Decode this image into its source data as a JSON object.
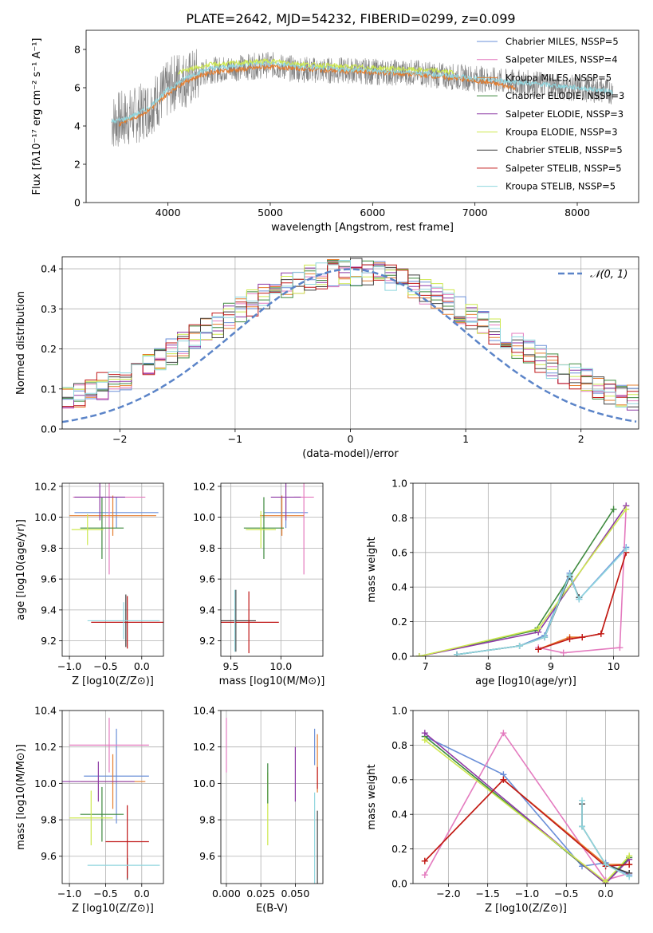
{
  "figure": {
    "title": "PLATE=2642, MJD=54232, FIBERID=0299, z=0.099"
  },
  "colors": {
    "Chabrier MILES": "#6a8fd8",
    "Salpeter MILES": "#e47bbf",
    "Kroupa MILES": "#e57c2b",
    "Chabrier ELODIE": "#3f8a3f",
    "Salpeter ELODIE": "#8e3aa5",
    "Kroupa ELODIE": "#cde84f",
    "Chabrier STELIB": "#404040",
    "Salpeter STELIB": "#c01818",
    "Kroupa STELIB": "#8fd6de",
    "data": "#808080",
    "normal": "#5b84c8"
  },
  "chart_data": [
    {
      "id": "spectrum",
      "type": "line",
      "xlabel": "wavelength [Angstrom, rest frame]",
      "ylabel": "Flux [fλ10⁻¹⁷ erg cm⁻² s⁻¹ A⁻¹]",
      "xlim": [
        3200,
        8600
      ],
      "ylim": [
        0,
        9
      ],
      "xticks": [
        4000,
        5000,
        6000,
        7000,
        8000
      ],
      "yticks": [
        0,
        2,
        4,
        6,
        8
      ],
      "legend_placement": "right",
      "legend": [
        "Chabrier MILES, NSSP=5",
        "Salpeter MILES, NSSP=4",
        "Kroupa MILES, NSSP=5",
        "Chabrier ELODIE, NSSP=3",
        "Salpeter ELODIE, NSSP=3",
        "Kroupa ELODIE, NSSP=3",
        "Chabrier STELIB, NSSP=5",
        "Salpeter STELIB, NSSP=5",
        "Kroupa STELIB, NSSP=5"
      ],
      "series": [
        {
          "name": "data",
          "x": [
            3450,
            3500,
            3600,
            3700,
            3800,
            3900,
            4000,
            4100,
            4200,
            4400,
            4600,
            4800,
            5000,
            5200,
            5500,
            5800,
            6100,
            6400,
            6700,
            7000,
            7300,
            7600,
            7900,
            8200,
            8350
          ],
          "y": [
            4.2,
            4.3,
            4.4,
            4.6,
            4.9,
            5.4,
            5.9,
            6.5,
            6.4,
            6.9,
            7.0,
            7.1,
            7.2,
            7.0,
            6.9,
            6.9,
            6.8,
            6.8,
            6.6,
            6.5,
            6.3,
            6.2,
            6.0,
            5.9,
            5.8
          ]
        },
        {
          "name": "Kroupa MILES, NSSP=5",
          "x": [
            3520,
            3600,
            3700,
            3800,
            3900,
            4000,
            4100,
            4200,
            4400,
            4600,
            4800,
            5000,
            5300,
            5600,
            6000,
            6400,
            6800,
            7100,
            7400
          ],
          "y": [
            4.1,
            4.3,
            4.5,
            4.8,
            5.2,
            5.7,
            6.1,
            6.4,
            6.8,
            6.9,
            7.0,
            7.1,
            7.0,
            6.9,
            6.8,
            6.7,
            6.5,
            6.3,
            6.0
          ]
        },
        {
          "name": "Kroupa STELIB, NSSP=5",
          "x": [
            3450,
            3600,
            3800,
            4000,
            4200,
            4400,
            4600,
            4800,
            5000,
            5300,
            5600,
            6000,
            6400,
            6800,
            7200,
            7600,
            8000,
            8350
          ],
          "y": [
            4.2,
            4.4,
            4.9,
            5.9,
            6.6,
            7.0,
            7.1,
            7.3,
            7.3,
            7.1,
            7.0,
            6.9,
            6.8,
            6.6,
            6.4,
            6.2,
            6.0,
            5.8
          ]
        },
        {
          "name": "Kroupa ELODIE, NSSP=3",
          "x": [
            4100,
            4400,
            4700,
            5000,
            5400,
            5800,
            6200,
            6600,
            6800
          ],
          "y": [
            6.8,
            7.2,
            7.3,
            7.4,
            7.2,
            7.1,
            7.0,
            6.9,
            6.8
          ]
        }
      ]
    },
    {
      "id": "residuals",
      "type": "line",
      "xlabel": "(data-model)/error",
      "ylabel": "Normed distribution",
      "xlim": [
        -2.5,
        2.5
      ],
      "ylim": [
        0,
        0.43
      ],
      "xticks": [
        -2,
        -1,
        0,
        1,
        2
      ],
      "yticks": [
        0.0,
        0.1,
        0.2,
        0.3,
        0.4
      ],
      "legend": [
        "𝒩(0, 1)"
      ],
      "legend_placement": "top-right",
      "series": [
        {
          "name": "𝒩(0, 1)",
          "mean": 0,
          "sigma": 1
        }
      ]
    },
    {
      "id": "age-vs-z",
      "type": "scatter",
      "xlabel": "Z [log10(Z/Z⊙)]",
      "ylabel": "age  [log10(age/yr)]",
      "xlim": [
        -1.1,
        0.3
      ],
      "ylim": [
        9.1,
        10.22
      ],
      "xticks": [
        -1.0,
        -0.5,
        0.0
      ],
      "yticks": [
        9.2,
        9.4,
        9.6,
        9.8,
        10.0,
        10.2
      ],
      "points": [
        {
          "model": "Chabrier MILES",
          "x": -0.35,
          "y": 10.03,
          "xerr": 0.58,
          "yerr": 0.1
        },
        {
          "model": "Salpeter MILES",
          "x": -0.45,
          "y": 10.13,
          "xerr": 0.5,
          "yerr": 0.5
        },
        {
          "model": "Kroupa MILES",
          "x": -0.4,
          "y": 10.01,
          "xerr": 0.6,
          "yerr": 0.13
        },
        {
          "model": "Chabrier ELODIE",
          "x": -0.55,
          "y": 9.93,
          "xerr": 0.3,
          "yerr": 0.2
        },
        {
          "model": "Salpeter ELODIE",
          "x": -0.58,
          "y": 10.13,
          "xerr": 0.35,
          "yerr": 0.15
        },
        {
          "model": "Kroupa ELODIE",
          "x": -0.75,
          "y": 9.92,
          "xerr": 0.22,
          "yerr": 0.1
        },
        {
          "model": "Chabrier STELIB",
          "x": -0.22,
          "y": 9.33,
          "xerr": 0.0,
          "yerr": 0.17
        },
        {
          "model": "Salpeter STELIB",
          "x": -0.2,
          "y": 9.32,
          "xerr": 0.5,
          "yerr": 0.17
        },
        {
          "model": "Kroupa STELIB",
          "x": -0.25,
          "y": 9.33,
          "xerr": 0.5,
          "yerr": 0.12
        }
      ]
    },
    {
      "id": "age-vs-mass",
      "type": "scatter",
      "xlabel": "mass [log10(M/M⊙)]",
      "ylabel": "",
      "xlim": [
        9.4,
        10.42
      ],
      "ylim": [
        9.1,
        10.22
      ],
      "xticks": [
        9.5,
        10.0
      ],
      "yticks": [
        9.2,
        9.4,
        9.6,
        9.8,
        10.0,
        10.2
      ],
      "points": [
        {
          "model": "Chabrier MILES",
          "x": 10.05,
          "y": 10.03,
          "xerr": 0.22,
          "yerr": 0.1
        },
        {
          "model": "Salpeter MILES",
          "x": 10.23,
          "y": 10.13,
          "xerr": 0.1,
          "yerr": 0.5
        },
        {
          "model": "Kroupa MILES",
          "x": 10.01,
          "y": 10.01,
          "xerr": 0.22,
          "yerr": 0.13
        },
        {
          "model": "Chabrier ELODIE",
          "x": 9.83,
          "y": 9.93,
          "xerr": 0.2,
          "yerr": 0.2
        },
        {
          "model": "Salpeter ELODIE",
          "x": 10.05,
          "y": 10.13,
          "xerr": 0.15,
          "yerr": 0.15
        },
        {
          "model": "Kroupa ELODIE",
          "x": 9.8,
          "y": 9.92,
          "xerr": 0.15,
          "yerr": 0.12
        },
        {
          "model": "Chabrier STELIB",
          "x": 9.55,
          "y": 9.33,
          "xerr": 0.2,
          "yerr": 0.2
        },
        {
          "model": "Salpeter STELIB",
          "x": 9.68,
          "y": 9.32,
          "xerr": 0.3,
          "yerr": 0.2
        },
        {
          "model": "Kroupa STELIB",
          "x": 9.54,
          "y": 9.33,
          "xerr": 0.0,
          "yerr": 0.2
        }
      ]
    },
    {
      "id": "mass-weight-vs-age",
      "type": "line",
      "xlabel": "age  [log10(age/yr)]",
      "ylabel": "mass weight",
      "xlim": [
        6.8,
        10.4
      ],
      "ylim": [
        0,
        1
      ],
      "xticks": [
        7,
        8,
        9,
        10
      ],
      "yticks": [
        0.0,
        0.2,
        0.4,
        0.6,
        0.8,
        1.0
      ],
      "series": [
        {
          "name": "Chabrier MILES",
          "x": [
            7.5,
            8.5,
            8.9,
            9.3,
            9.45,
            10.2
          ],
          "y": [
            0.01,
            0.06,
            0.12,
            0.48,
            0.33,
            0.63
          ]
        },
        {
          "name": "Salpeter MILES",
          "x": [
            8.8,
            9.2,
            10.1,
            10.2
          ],
          "y": [
            0.05,
            0.02,
            0.05,
            0.87
          ]
        },
        {
          "name": "Kroupa MILES",
          "x": [
            8.8,
            9.3,
            9.5,
            9.8,
            10.2
          ],
          "y": [
            0.04,
            0.11,
            0.11,
            0.13,
            0.6
          ]
        },
        {
          "name": "Chabrier ELODIE",
          "x": [
            6.9,
            8.75,
            10.0
          ],
          "y": [
            0.0,
            0.15,
            0.85
          ]
        },
        {
          "name": "Salpeter ELODIE",
          "x": [
            6.9,
            8.8,
            10.2
          ],
          "y": [
            0.0,
            0.14,
            0.87
          ]
        },
        {
          "name": "Kroupa ELODIE",
          "x": [
            6.9,
            8.8,
            10.2
          ],
          "y": [
            0.0,
            0.16,
            0.85
          ]
        },
        {
          "name": "Chabrier STELIB",
          "x": [
            7.5,
            8.5,
            8.9,
            9.3,
            9.45
          ],
          "y": [
            0.01,
            0.06,
            0.11,
            0.46,
            0.34
          ]
        },
        {
          "name": "Salpeter STELIB",
          "x": [
            8.8,
            9.3,
            9.5,
            9.8,
            10.2
          ],
          "y": [
            0.04,
            0.1,
            0.11,
            0.13,
            0.6
          ]
        },
        {
          "name": "Kroupa STELIB",
          "x": [
            7.5,
            8.5,
            8.9,
            9.3,
            9.45,
            10.2
          ],
          "y": [
            0.01,
            0.06,
            0.11,
            0.47,
            0.33,
            0.62
          ]
        }
      ]
    },
    {
      "id": "mass-vs-z",
      "type": "scatter",
      "xlabel": "Z [log10(Z/Z⊙)]",
      "ylabel": "mass [log10(M/M⊙)]",
      "xlim": [
        -1.1,
        0.3
      ],
      "ylim": [
        9.45,
        10.4
      ],
      "xticks": [
        -1.0,
        -0.5,
        0.0
      ],
      "yticks": [
        9.6,
        9.8,
        10.0,
        10.2,
        10.4
      ],
      "points": [
        {
          "model": "Chabrier MILES",
          "x": -0.35,
          "y": 10.04,
          "xerr": 0.45,
          "yerr": 0.26
        },
        {
          "model": "Salpeter MILES",
          "x": -0.45,
          "y": 10.21,
          "xerr": 0.55,
          "yerr": 0.15
        },
        {
          "model": "Kroupa MILES",
          "x": -0.4,
          "y": 10.01,
          "xerr": 0.45,
          "yerr": 0.15
        },
        {
          "model": "Chabrier ELODIE",
          "x": -0.55,
          "y": 9.83,
          "xerr": 0.3,
          "yerr": 0.15
        },
        {
          "model": "Salpeter ELODIE",
          "x": -0.6,
          "y": 10.01,
          "xerr": 0.5,
          "yerr": 0.11
        },
        {
          "model": "Kroupa ELODIE",
          "x": -0.7,
          "y": 9.81,
          "xerr": 0.3,
          "yerr": 0.15
        },
        {
          "model": "Chabrier STELIB",
          "x": -0.2,
          "y": 9.53,
          "xerr": 0.0,
          "yerr": 0.06
        },
        {
          "model": "Salpeter STELIB",
          "x": -0.2,
          "y": 9.68,
          "xerr": 0.3,
          "yerr": 0.2
        },
        {
          "model": "Kroupa STELIB",
          "x": -0.25,
          "y": 9.55,
          "xerr": 0.5,
          "yerr": 0.0
        }
      ]
    },
    {
      "id": "mass-vs-ebv",
      "type": "scatter",
      "xlabel": "E(B-V)",
      "ylabel": "",
      "xlim": [
        -0.004,
        0.07
      ],
      "ylim": [
        9.45,
        10.4
      ],
      "xticks": [
        0.0,
        0.025,
        0.05
      ],
      "yticks": [
        9.6,
        9.8,
        10.0,
        10.2,
        10.4
      ],
      "points": [
        {
          "model": "Salpeter MILES",
          "x": 0.0,
          "y": 10.21,
          "yerr": 0.15
        },
        {
          "model": "Kroupa MILES",
          "x": 0.066,
          "y": 10.11,
          "yerr": 0.16
        },
        {
          "model": "Kroupa ELODIE",
          "x": 0.03,
          "y": 9.86,
          "yerr": 0.2
        },
        {
          "model": "Chabrier ELODIE",
          "x": 0.03,
          "y": 10.0,
          "yerr": 0.11
        },
        {
          "model": "Salpeter ELODIE",
          "x": 0.05,
          "y": 10.05,
          "yerr": 0.15
        },
        {
          "model": "Chabrier MILES",
          "x": 0.064,
          "y": 10.2,
          "yerr": 0.1
        },
        {
          "model": "Kroupa STELIB",
          "x": 0.064,
          "y": 9.7,
          "yerr": 0.25
        },
        {
          "model": "Chabrier STELIB",
          "x": 0.066,
          "y": 9.65,
          "yerr": 0.2
        },
        {
          "model": "Salpeter STELIB",
          "x": 0.066,
          "y": 10.03,
          "yerr": 0.06
        }
      ]
    },
    {
      "id": "mass-weight-vs-z",
      "type": "line",
      "xlabel": "Z [log10(Z/Z⊙)]",
      "ylabel": "mass weight",
      "xlim": [
        -2.45,
        0.42
      ],
      "ylim": [
        0,
        1
      ],
      "xticks": [
        -2.0,
        -1.5,
        -1.0,
        -0.5,
        0.0
      ],
      "yticks": [
        0.0,
        0.2,
        0.4,
        0.6,
        0.8,
        1.0
      ],
      "series": [
        {
          "name": "Chabrier MILES",
          "x": [
            -2.3,
            -1.3,
            -0.3,
            0.0,
            0.3
          ],
          "y": [
            0.85,
            0.63,
            0.1,
            0.12,
            0.05
          ]
        },
        {
          "name": "Salpeter MILES",
          "x": [
            -2.3,
            -1.3,
            0.0,
            0.3
          ],
          "y": [
            0.05,
            0.87,
            0.02,
            0.06
          ]
        },
        {
          "name": "Kroupa MILES",
          "x": [
            -2.3,
            -1.3,
            0.0,
            0.3
          ],
          "y": [
            0.13,
            0.6,
            0.11,
            0.11
          ]
        },
        {
          "name": "Chabrier ELODIE",
          "x": [
            -2.3,
            0.0,
            0.3
          ],
          "y": [
            0.85,
            0.0,
            0.15
          ]
        },
        {
          "name": "Salpeter ELODIE",
          "x": [
            -2.3,
            0.0,
            0.3
          ],
          "y": [
            0.87,
            0.0,
            0.14
          ]
        },
        {
          "name": "Kroupa ELODIE",
          "x": [
            -2.3,
            0.0,
            0.3
          ],
          "y": [
            0.83,
            0.01,
            0.16
          ]
        },
        {
          "name": "Chabrier STELIB",
          "x": [
            -0.3,
            -0.3,
            0.0,
            0.3
          ],
          "y": [
            0.46,
            0.33,
            0.11,
            0.06
          ]
        },
        {
          "name": "Salpeter STELIB",
          "x": [
            -2.3,
            -1.3,
            0.0,
            0.3
          ],
          "y": [
            0.13,
            0.6,
            0.1,
            0.11
          ]
        },
        {
          "name": "Kroupa STELIB",
          "x": [
            -0.3,
            -0.3,
            0.0,
            0.3
          ],
          "y": [
            0.48,
            0.33,
            0.11,
            0.04
          ]
        }
      ]
    }
  ]
}
